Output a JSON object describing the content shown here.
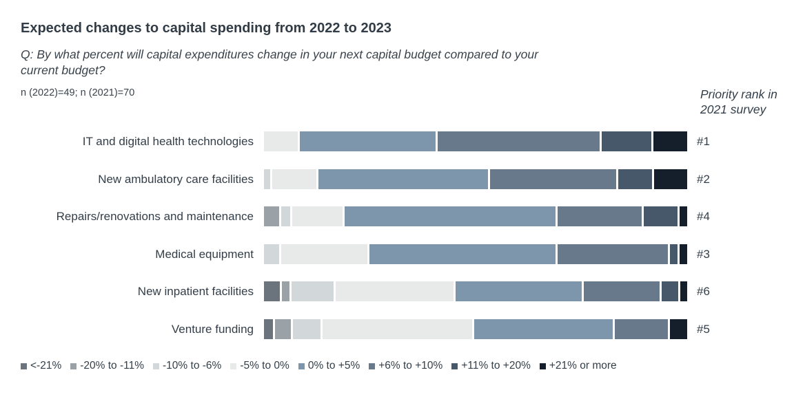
{
  "title": "Expected changes to capital spending from 2022 to 2023",
  "subtitle": "Q: By what percent will capital expenditures change in your next capital budget compared to your\ncurrent budget?",
  "sample_note": "n (2022)=49;  n (2021)=70",
  "right_header": "Priority rank in\n2021 survey",
  "colors": {
    "text": "#333e48",
    "background": "#ffffff"
  },
  "chart_data": {
    "type": "bar",
    "orientation": "horizontal",
    "stacked": true,
    "units": "percent of respondents",
    "legend_position": "bottom",
    "categories": [
      {
        "label": "<-21%",
        "color": "#6b737c"
      },
      {
        "label": "-20% to -11%",
        "color": "#9aa1a7"
      },
      {
        "label": "-10% to -6%",
        "color": "#d2d7d9"
      },
      {
        "label": "-5% to 0%",
        "color": "#e8e9e9"
      },
      {
        "label": "0% to +5%",
        "color": "#7d96ab"
      },
      {
        "label": "+6% to +10%",
        "color": "#68798b"
      },
      {
        "label": "+11% to +20%",
        "color": "#47586a"
      },
      {
        "label": "+21% or more",
        "color": "#141f2b"
      }
    ],
    "rows": [
      {
        "label": "IT and digital health technologies",
        "rank": "#1",
        "values": [
          0,
          0,
          0,
          8.1,
          32.8,
          39.0,
          12.0,
          8.1
        ]
      },
      {
        "label": "New ambulatory care facilities",
        "rank": "#2",
        "values": [
          0,
          0,
          1.5,
          10.7,
          41.0,
          30.6,
          8.2,
          8.0
        ]
      },
      {
        "label": "Repairs/renovations and maintenance",
        "rank": "#4",
        "values": [
          0,
          3.7,
          2.1,
          12.3,
          51.3,
          20.5,
          8.3,
          1.8
        ]
      },
      {
        "label": "Medical equipment",
        "rank": "#3",
        "values": [
          0,
          0,
          3.7,
          20.8,
          45.1,
          26.8,
          1.8,
          1.8
        ]
      },
      {
        "label": "New inpatient facilities",
        "rank": "#6",
        "values": [
          3.9,
          1.9,
          10.3,
          28.7,
          30.9,
          18.6,
          4.0,
          1.7
        ]
      },
      {
        "label": "Venture funding",
        "rank": "#5",
        "values": [
          2.1,
          4.0,
          6.6,
          36.4,
          33.8,
          12.9,
          0,
          4.2
        ]
      }
    ]
  }
}
